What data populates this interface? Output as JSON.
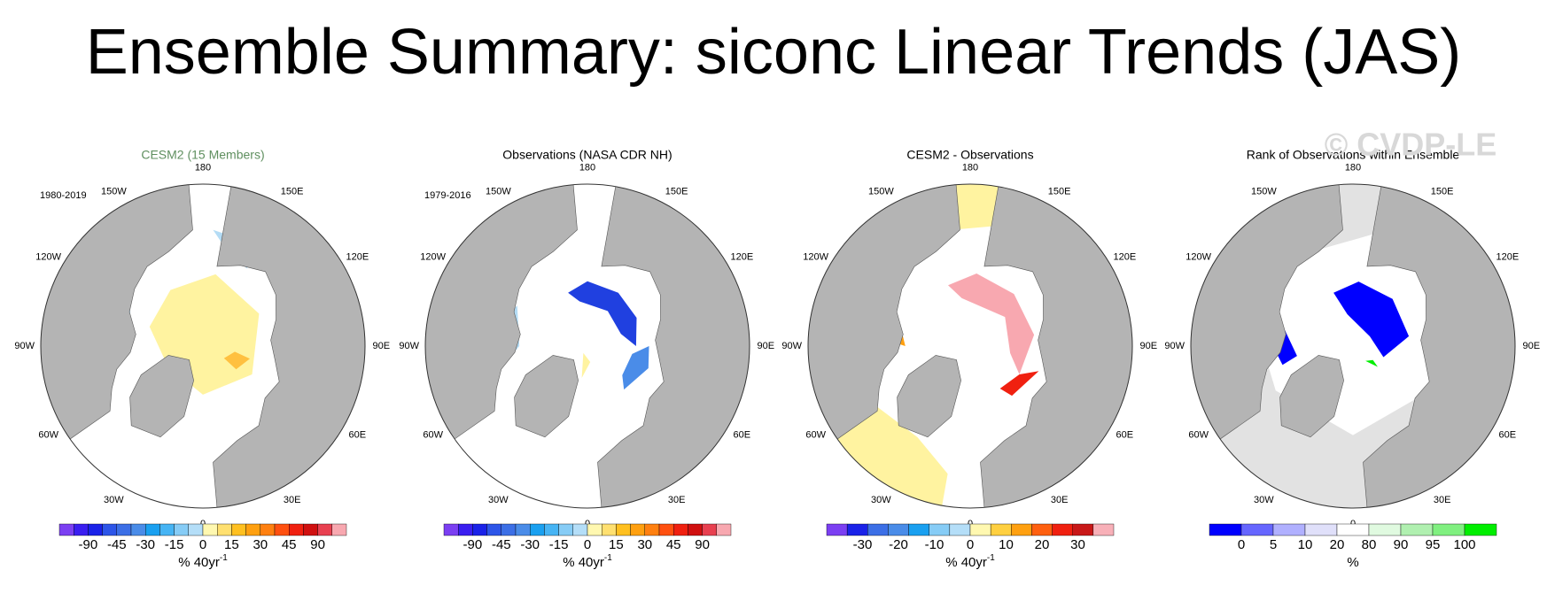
{
  "title": "Ensemble Summary: siconc Linear Trends (JAS)",
  "watermark": "© CVDP-LE",
  "longitude_labels": [
    "180",
    "150E",
    "120E",
    "90E",
    "60E",
    "30E",
    "0",
    "30W",
    "60W",
    "90W",
    "120W",
    "150W"
  ],
  "panels": [
    {
      "title": "CESM2 (15 Members)",
      "title_color": "#5f8f5f",
      "period": "1980-2019",
      "colorbar": {
        "colors": [
          "#7b3ff2",
          "#3a1ef0",
          "#1a22e8",
          "#2d55e8",
          "#3c6fe6",
          "#4a8ce8",
          "#1aa0f0",
          "#46b4f4",
          "#86ccf6",
          "#b4def8",
          "#fff8b0",
          "#ffe070",
          "#ffc020",
          "#ffa010",
          "#ff8010",
          "#ff5010",
          "#f02010",
          "#d01010",
          "#e84050",
          "#f8a8b0"
        ],
        "labels": [
          -90,
          -45,
          -30,
          -15,
          0,
          15,
          30,
          45,
          90
        ],
        "units": "% 40yr",
        "units_sup": "-1"
      }
    },
    {
      "title": "Observations (NASA CDR NH)",
      "title_color": "#000000",
      "period": "1979-2016",
      "colorbar": {
        "colors": [
          "#7b3ff2",
          "#3a1ef0",
          "#1a22e8",
          "#2d55e8",
          "#3c6fe6",
          "#4a8ce8",
          "#1aa0f0",
          "#46b4f4",
          "#86ccf6",
          "#b4def8",
          "#fff8b0",
          "#ffe070",
          "#ffc020",
          "#ffa010",
          "#ff8010",
          "#ff5010",
          "#f02010",
          "#d01010",
          "#e84050",
          "#f8a8b0"
        ],
        "labels": [
          -90,
          -45,
          -30,
          -15,
          0,
          15,
          30,
          45,
          90
        ],
        "units": "% 40yr",
        "units_sup": "-1"
      }
    },
    {
      "title": "CESM2 - Observations",
      "title_color": "#000000",
      "colorbar": {
        "colors": [
          "#7b3ff2",
          "#1a22e8",
          "#3c6fe6",
          "#4a8ce8",
          "#1aa0f0",
          "#86ccf6",
          "#b4def8",
          "#fff8b0",
          "#ffd040",
          "#ffa010",
          "#ff6010",
          "#f02010",
          "#c81818",
          "#f8b0b8"
        ],
        "labels": [
          -30,
          -20,
          -10,
          0,
          10,
          20,
          30
        ],
        "units": "% 40yr",
        "units_sup": "-1"
      }
    },
    {
      "title": "Rank of Observations within Ensemble",
      "title_color": "#000000",
      "colorbar": {
        "colors": [
          "#0000ff",
          "#6666ff",
          "#b0b0ff",
          "#e0e0fa",
          "#ffffff",
          "#e0fae0",
          "#b0f0b0",
          "#80f080",
          "#00ee00"
        ],
        "labels": [
          0,
          5,
          10,
          20,
          80,
          90,
          95,
          100
        ],
        "units": "%"
      }
    }
  ]
}
